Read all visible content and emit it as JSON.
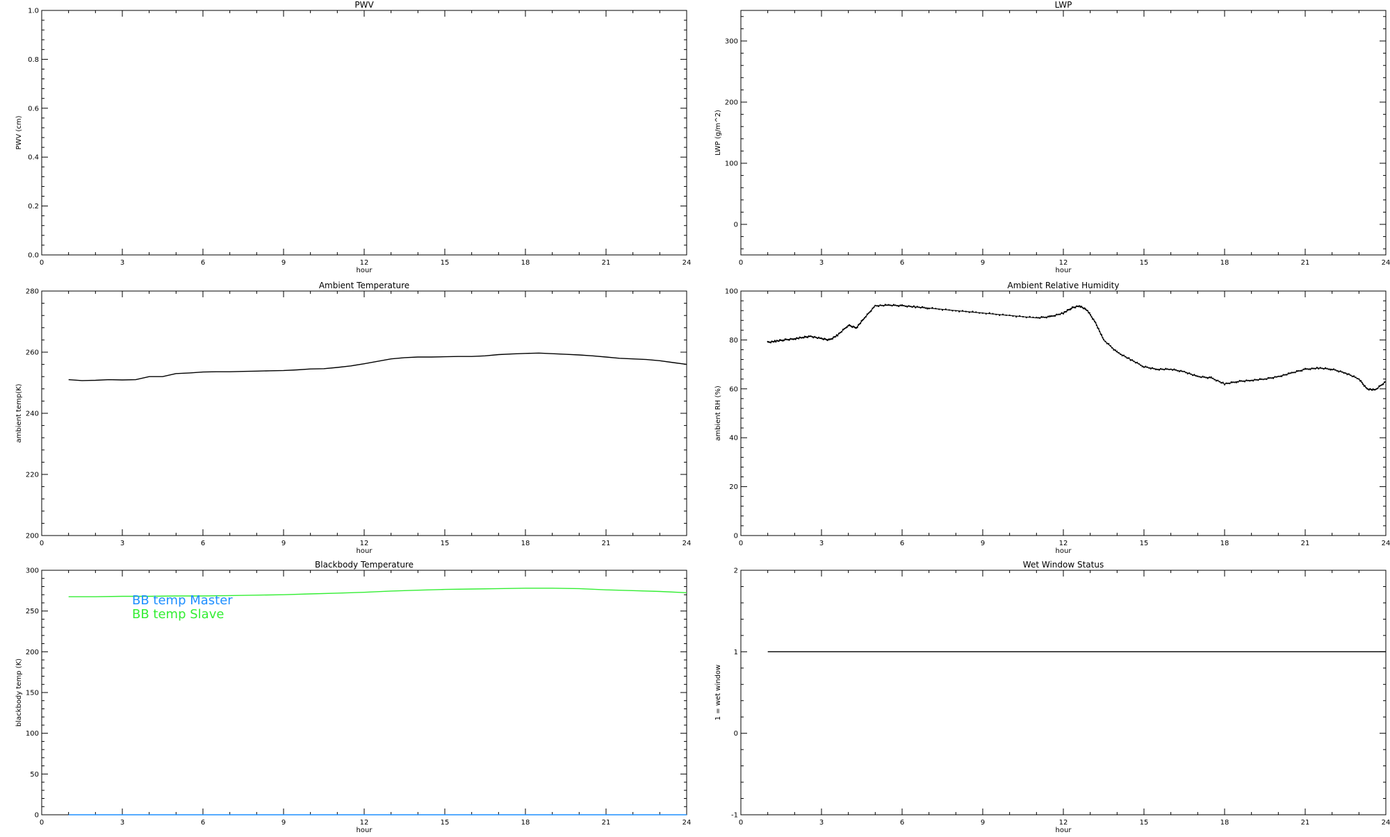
{
  "chart_data": [
    {
      "id": "pwv",
      "type": "line",
      "title": "PWV",
      "xlabel": "hour",
      "ylabel": "PWV (cm)",
      "xlim": [
        0,
        24
      ],
      "ylim": [
        0,
        1
      ],
      "xticks": [
        "0",
        "3",
        "6",
        "9",
        "12",
        "15",
        "18",
        "21",
        "24"
      ],
      "yticks": [
        "0.0",
        "0.2",
        "0.4",
        "0.6",
        "0.8",
        "1.0"
      ],
      "series": []
    },
    {
      "id": "lwp",
      "type": "line",
      "title": "LWP",
      "xlabel": "hour",
      "ylabel": "LWP (g/m^2)",
      "xlim": [
        0,
        24
      ],
      "ylim": [
        -50,
        350
      ],
      "xticks": [
        "0",
        "3",
        "6",
        "9",
        "12",
        "15",
        "18",
        "21",
        "24"
      ],
      "yticks": [
        "0",
        "100",
        "200",
        "300"
      ],
      "series": []
    },
    {
      "id": "ambient-temp",
      "type": "line",
      "title": "Ambient Temperature",
      "xlabel": "hour",
      "ylabel": "ambient temp(K)",
      "xlim": [
        0,
        24
      ],
      "ylim": [
        200,
        280
      ],
      "xticks": [
        "0",
        "3",
        "6",
        "9",
        "12",
        "15",
        "18",
        "21",
        "24"
      ],
      "yticks": [
        "200",
        "220",
        "240",
        "260",
        "280"
      ],
      "series": [
        {
          "color": "#000000",
          "x": [
            1,
            1.5,
            2,
            2.5,
            3,
            3.5,
            4,
            4.5,
            5,
            5.5,
            6,
            6.5,
            7,
            7.5,
            8,
            8.5,
            9,
            9.5,
            10,
            10.5,
            11,
            11.5,
            12,
            12.5,
            13,
            13.5,
            14,
            14.5,
            15,
            15.5,
            16,
            16.5,
            17,
            17.5,
            18,
            18.5,
            19,
            19.5,
            20,
            20.5,
            21,
            21.5,
            22,
            22.5,
            23,
            23.5,
            24
          ],
          "y": [
            251,
            250.7,
            250.8,
            251,
            250.9,
            251,
            252,
            252,
            253,
            253.2,
            253.5,
            253.6,
            253.6,
            253.7,
            253.8,
            253.9,
            254,
            254.2,
            254.5,
            254.6,
            255,
            255.5,
            256.2,
            257,
            257.8,
            258.2,
            258.4,
            258.4,
            258.5,
            258.6,
            258.6,
            258.8,
            259.2,
            259.4,
            259.6,
            259.7,
            259.5,
            259.3,
            259.1,
            258.8,
            258.4,
            258,
            257.8,
            257.6,
            257.2,
            256.6,
            256
          ]
        }
      ]
    },
    {
      "id": "ambient-rh",
      "type": "scatter",
      "title": "Ambient Relative Humidity",
      "xlabel": "hour",
      "ylabel": "ambient RH (%)",
      "xlim": [
        0,
        24
      ],
      "ylim": [
        0,
        100
      ],
      "xticks": [
        "0",
        "3",
        "6",
        "9",
        "12",
        "15",
        "18",
        "21",
        "24"
      ],
      "yticks": [
        "0",
        "20",
        "40",
        "60",
        "80",
        "100"
      ],
      "series": [
        {
          "color": "#000000",
          "x": [
            1,
            1.3,
            1.6,
            2,
            2.3,
            2.6,
            3,
            3.3,
            3.6,
            4,
            4.3,
            4.6,
            5,
            5.5,
            6,
            6.5,
            7,
            8,
            9,
            10,
            11,
            11.5,
            12,
            12.3,
            12.6,
            12.9,
            13.2,
            13.5,
            14,
            14.5,
            15,
            15.5,
            16,
            16.5,
            17,
            17.5,
            18,
            18.5,
            19,
            19.5,
            20,
            20.5,
            21,
            21.5,
            22,
            22.5,
            23,
            23.3,
            23.6,
            24
          ],
          "y": [
            79,
            79.5,
            80,
            80.5,
            81,
            81.5,
            80.5,
            80,
            82,
            86,
            85,
            89,
            94,
            94.2,
            94,
            93.5,
            93,
            92,
            91,
            90,
            89,
            89.5,
            91,
            93,
            94,
            92,
            87,
            80,
            75,
            72,
            69,
            68,
            68,
            67,
            65,
            64.5,
            62,
            63,
            63.5,
            64,
            65,
            66.5,
            68,
            68.5,
            68,
            66.5,
            64,
            60,
            59.5,
            63
          ]
        }
      ]
    },
    {
      "id": "bb-temp",
      "type": "line",
      "title": "Blackbody Temperature",
      "xlabel": "hour",
      "ylabel": "blackbody temp (K)",
      "xlim": [
        0,
        24
      ],
      "ylim": [
        0,
        300
      ],
      "xticks": [
        "0",
        "3",
        "6",
        "9",
        "12",
        "15",
        "18",
        "21",
        "24"
      ],
      "yticks": [
        "0",
        "50",
        "100",
        "150",
        "200",
        "250",
        "300"
      ],
      "legend_position": "top-left",
      "series": [
        {
          "name": "BB temp Master",
          "color": "#1f8fff",
          "x": [
            1,
            2,
            3,
            4,
            5,
            6,
            7,
            8,
            9,
            10,
            11,
            12,
            13,
            14,
            15,
            16,
            17,
            18,
            19,
            20,
            21,
            22,
            23,
            24
          ],
          "y": [
            0,
            0,
            0,
            0,
            0,
            0,
            0,
            0,
            0,
            0,
            0,
            0,
            0,
            0,
            0,
            0,
            0,
            0,
            0,
            0,
            0,
            0,
            0,
            0
          ]
        },
        {
          "name": "BB temp Slave",
          "color": "#33ee33",
          "x": [
            1,
            2,
            3,
            4,
            5,
            6,
            7,
            8,
            9,
            10,
            11,
            12,
            13,
            14,
            15,
            16,
            17,
            18,
            19,
            20,
            21,
            22,
            23,
            24
          ],
          "y": [
            267.5,
            267.5,
            268,
            268,
            268.5,
            268.5,
            269,
            269.5,
            270,
            271,
            272,
            273,
            274.5,
            275.5,
            276.5,
            277,
            277.5,
            278,
            278,
            277.5,
            276,
            275,
            274,
            272.5
          ]
        }
      ]
    },
    {
      "id": "wet-window",
      "type": "line",
      "title": "Wet Window Status",
      "xlabel": "hour",
      "ylabel": "1 = wet window",
      "xlim": [
        0,
        24
      ],
      "ylim": [
        -1,
        2
      ],
      "xticks": [
        "0",
        "3",
        "6",
        "9",
        "12",
        "15",
        "18",
        "21",
        "24"
      ],
      "yticks": [
        "-1",
        "0",
        "1",
        "2"
      ],
      "series": [
        {
          "color": "#000000",
          "x": [
            1,
            24
          ],
          "y": [
            1,
            1
          ]
        }
      ]
    }
  ]
}
